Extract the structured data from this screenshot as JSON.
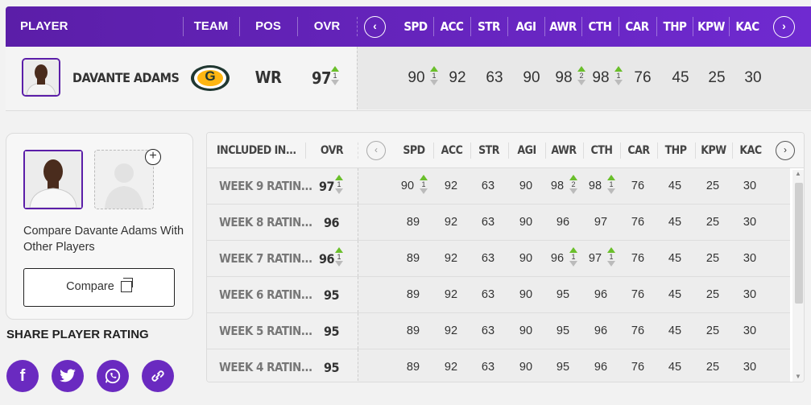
{
  "header": {
    "player": "PLAYER",
    "team": "TEAM",
    "pos": "POS",
    "ovr": "OVR",
    "stats": [
      "SPD",
      "ACC",
      "STR",
      "AGI",
      "AWR",
      "CTH",
      "CAR",
      "THP",
      "KPW",
      "KAC"
    ]
  },
  "player": {
    "name": "DAVANTE ADAMS",
    "team_logo": "G",
    "pos": "WR",
    "ovr": "97",
    "ovr_change": "1",
    "stats": [
      "90",
      "92",
      "63",
      "90",
      "98",
      "98",
      "76",
      "45",
      "25",
      "30"
    ],
    "stat_changes": {
      "0": "1",
      "4": "2",
      "5": "1"
    }
  },
  "compare": {
    "text": "Compare Davante Adams With Other Players",
    "button": "Compare",
    "add_icon": "+"
  },
  "share": {
    "title": "SHARE PLAYER RATING",
    "icons": [
      "facebook-icon",
      "twitter-icon",
      "whatsapp-icon",
      "link-icon"
    ]
  },
  "table": {
    "header": {
      "included": "INCLUDED IN...",
      "ovr": "OVR",
      "stats": [
        "SPD",
        "ACC",
        "STR",
        "AGI",
        "AWR",
        "CTH",
        "CAR",
        "THP",
        "KPW",
        "KAC"
      ]
    },
    "rows": [
      {
        "label": "WEEK 9 RATIN...",
        "ovr": "97",
        "ovr_change": "1",
        "stats": [
          "90",
          "92",
          "63",
          "90",
          "98",
          "98",
          "76",
          "45",
          "25",
          "30"
        ],
        "changes": {
          "0": "1",
          "4": "2",
          "5": "1"
        }
      },
      {
        "label": "WEEK 8 RATIN...",
        "ovr": "96",
        "ovr_change": "",
        "stats": [
          "89",
          "92",
          "63",
          "90",
          "96",
          "97",
          "76",
          "45",
          "25",
          "30"
        ],
        "changes": {}
      },
      {
        "label": "WEEK 7 RATIN...",
        "ovr": "96",
        "ovr_change": "1",
        "stats": [
          "89",
          "92",
          "63",
          "90",
          "96",
          "97",
          "76",
          "45",
          "25",
          "30"
        ],
        "changes": {
          "4": "1",
          "5": "1"
        }
      },
      {
        "label": "WEEK 6 RATIN...",
        "ovr": "95",
        "ovr_change": "",
        "stats": [
          "89",
          "92",
          "63",
          "90",
          "95",
          "96",
          "76",
          "45",
          "25",
          "30"
        ],
        "changes": {}
      },
      {
        "label": "WEEK 5 RATIN...",
        "ovr": "95",
        "ovr_change": "",
        "stats": [
          "89",
          "92",
          "63",
          "90",
          "95",
          "96",
          "76",
          "45",
          "25",
          "30"
        ],
        "changes": {}
      },
      {
        "label": "WEEK 4 RATIN...",
        "ovr": "95",
        "ovr_change": "",
        "stats": [
          "89",
          "92",
          "63",
          "90",
          "95",
          "96",
          "76",
          "45",
          "25",
          "30"
        ],
        "changes": {}
      }
    ]
  },
  "colors": {
    "brand": "#5b1ea8",
    "up": "#6abf2b",
    "packers_green": "#203731",
    "packers_gold": "#ffb612"
  }
}
